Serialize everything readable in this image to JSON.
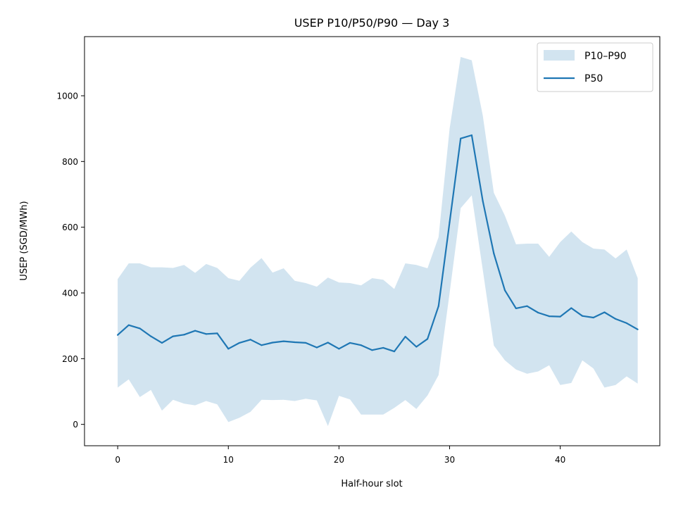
{
  "chart_data": {
    "type": "area",
    "title": "USEP P10/P50/P90 — Day 3",
    "xlabel": "Half-hour slot",
    "ylabel": "USEP (SGD/MWh)",
    "xlim": [
      -3,
      49
    ],
    "ylim": [
      -65,
      1180
    ],
    "xticks": [
      0,
      10,
      20,
      30,
      40
    ],
    "yticks": [
      0,
      200,
      400,
      600,
      800,
      1000
    ],
    "grid": false,
    "legend": {
      "placement": "top-right",
      "entries": [
        {
          "label": "P10–P90",
          "kind": "band"
        },
        {
          "label": "P50",
          "kind": "line"
        }
      ]
    },
    "colors": {
      "band": "#1f77b4",
      "band_opacity": 0.2,
      "line": "#1f77b4"
    },
    "x": [
      0,
      1,
      2,
      3,
      4,
      5,
      6,
      7,
      8,
      9,
      10,
      11,
      12,
      13,
      14,
      15,
      16,
      17,
      18,
      19,
      20,
      21,
      22,
      23,
      24,
      25,
      26,
      27,
      28,
      29,
      30,
      31,
      32,
      33,
      34,
      35,
      36,
      37,
      38,
      39,
      40,
      41,
      42,
      43,
      44,
      45,
      46,
      47
    ],
    "series": [
      {
        "name": "P50",
        "role": "line",
        "values": [
          272,
          302,
          292,
          268,
          248,
          268,
          273,
          285,
          275,
          277,
          230,
          248,
          258,
          241,
          249,
          253,
          250,
          248,
          234,
          249,
          230,
          248,
          241,
          226,
          233,
          222,
          267,
          236,
          260,
          360,
          615,
          870,
          880,
          680,
          520,
          408,
          353,
          360,
          340,
          329,
          328,
          354,
          330,
          325,
          341,
          321,
          308,
          289
        ]
      },
      {
        "name": "P10",
        "role": "band-lower",
        "values": [
          112,
          137,
          83,
          105,
          42,
          75,
          63,
          58,
          71,
          61,
          7,
          20,
          38,
          75,
          74,
          75,
          71,
          78,
          73,
          -5,
          87,
          76,
          30,
          30,
          30,
          50,
          74,
          47,
          88,
          150,
          400,
          658,
          697,
          470,
          240,
          195,
          167,
          154,
          161,
          180,
          120,
          126,
          195,
          170,
          112,
          120,
          146,
          124
        ]
      },
      {
        "name": "P90",
        "role": "band-upper",
        "values": [
          442,
          490,
          490,
          478,
          478,
          476,
          485,
          461,
          488,
          476,
          445,
          437,
          477,
          506,
          462,
          475,
          437,
          430,
          419,
          447,
          432,
          430,
          423,
          445,
          440,
          412,
          490,
          485,
          475,
          570,
          900,
          1118,
          1108,
          940,
          705,
          635,
          548,
          550,
          550,
          510,
          555,
          587,
          555,
          535,
          532,
          505,
          532,
          445
        ]
      }
    ]
  }
}
